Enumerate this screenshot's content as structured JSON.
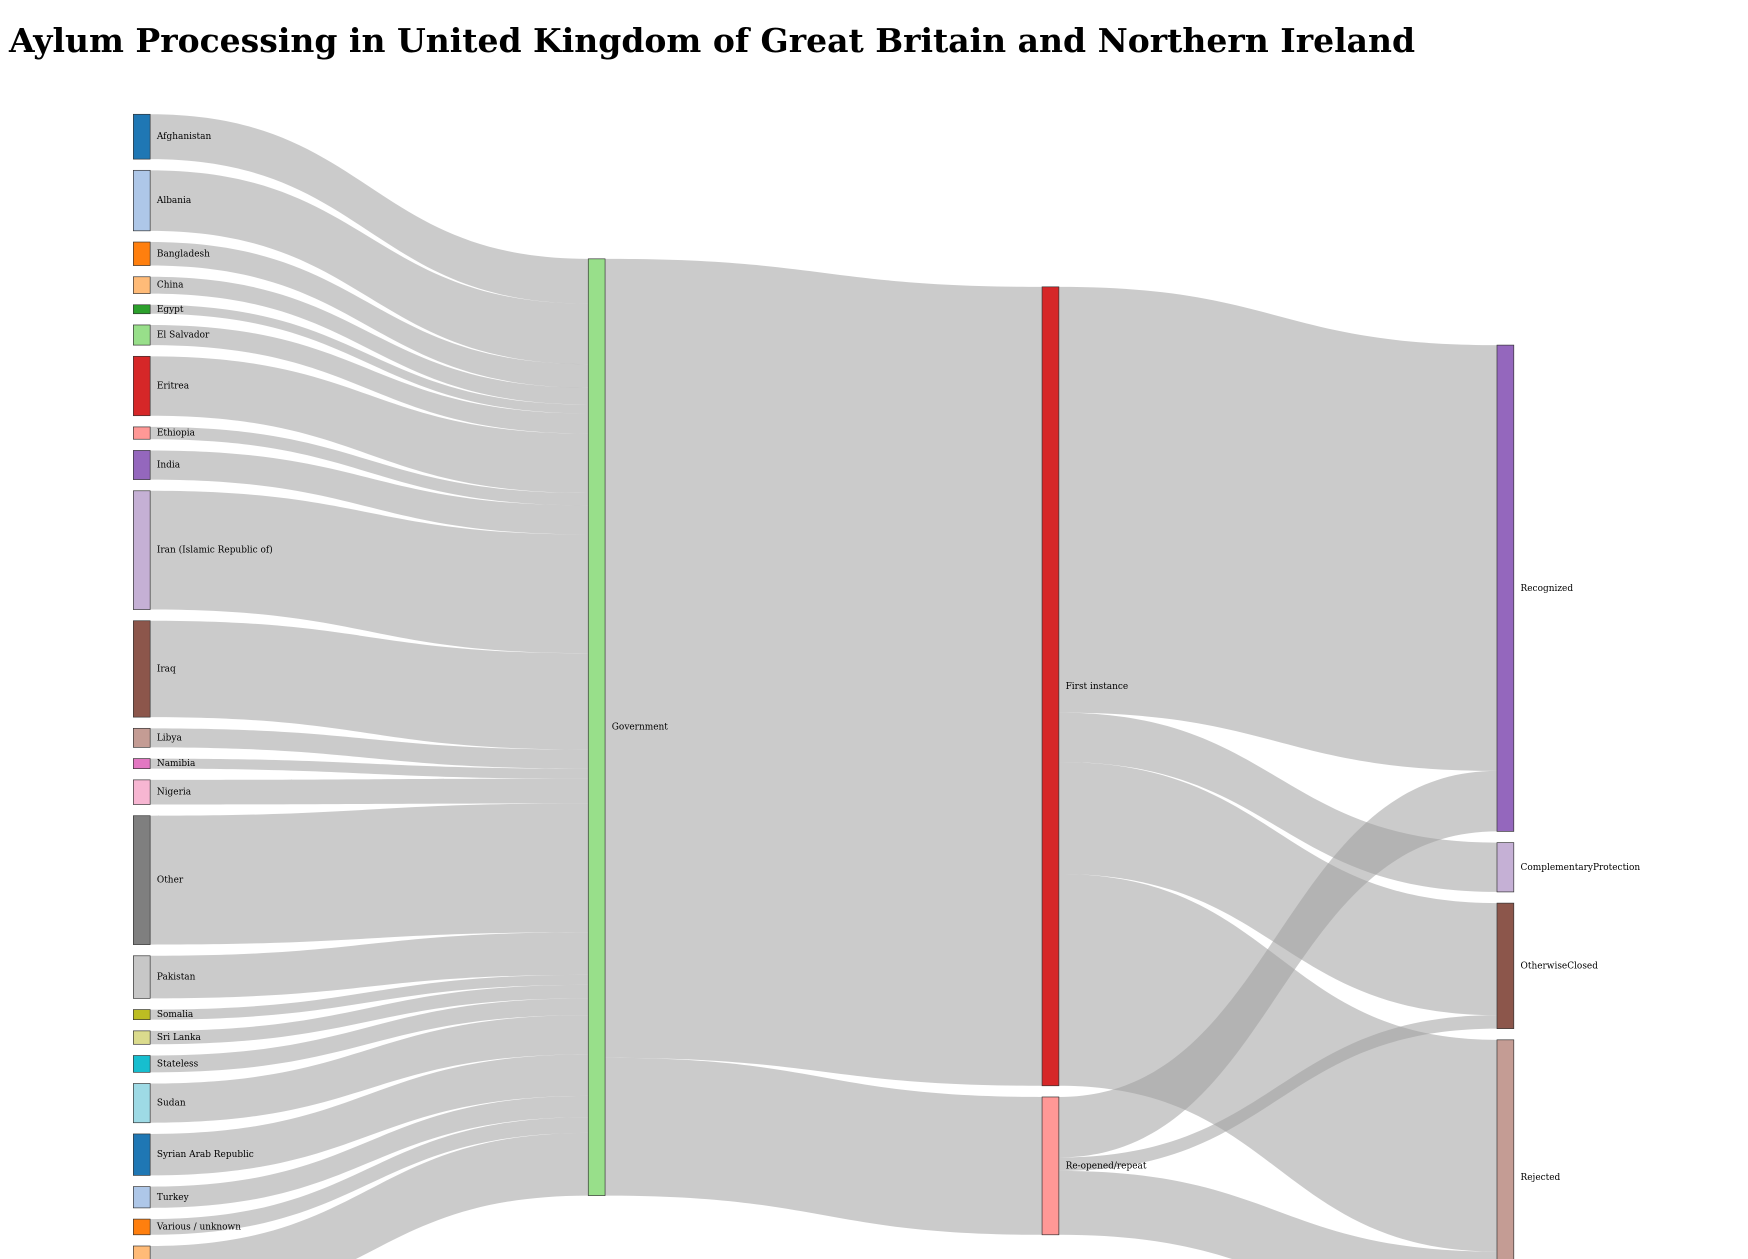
{
  "chart_data": {
    "type": "sankey",
    "title": "Aylum Processing in United Kingdom of Great Britain and Northern Ireland",
    "nodes": [
      {
        "name": "Afghanistan",
        "color": "#1f77b4"
      },
      {
        "name": "Albania",
        "color": "#aec7e8"
      },
      {
        "name": "Bangladesh",
        "color": "#ff7f0e"
      },
      {
        "name": "China",
        "color": "#ffbb78"
      },
      {
        "name": "Egypt",
        "color": "#2ca02c"
      },
      {
        "name": "El Salvador",
        "color": "#98df8a"
      },
      {
        "name": "Eritrea",
        "color": "#d62728"
      },
      {
        "name": "Ethiopia",
        "color": "#ff9896"
      },
      {
        "name": "India",
        "color": "#9467bd"
      },
      {
        "name": "Iran (Islamic Republic of)",
        "color": "#c5b0d5"
      },
      {
        "name": "Iraq",
        "color": "#8c564b"
      },
      {
        "name": "Libya",
        "color": "#c49c94"
      },
      {
        "name": "Namibia",
        "color": "#e377c2"
      },
      {
        "name": "Nigeria",
        "color": "#f7b6d2"
      },
      {
        "name": "Other",
        "color": "#7f7f7f"
      },
      {
        "name": "Pakistan",
        "color": "#c7c7c7"
      },
      {
        "name": "Somalia",
        "color": "#bcbd22"
      },
      {
        "name": "Sri Lanka",
        "color": "#dbdb8d"
      },
      {
        "name": "Stateless",
        "color": "#17becf"
      },
      {
        "name": "Sudan",
        "color": "#9edae5"
      },
      {
        "name": "Syrian Arab Republic",
        "color": "#1f77b4"
      },
      {
        "name": "Turkey",
        "color": "#aec7e8"
      },
      {
        "name": "Various / unknown",
        "color": "#ff7f0e"
      },
      {
        "name": null,
        "color": "#ffbb78"
      },
      {
        "name": "Government",
        "color": "#98df8a"
      },
      {
        "name": "First instance",
        "color": "#d62728"
      },
      {
        "name": "Re-opened/repeat",
        "color": "#ff9896"
      },
      {
        "name": "Recognized",
        "color": "#9467bd"
      },
      {
        "name": "ComplementaryProtection",
        "color": "#c5b0d5"
      },
      {
        "name": "OtherwiseClosed",
        "color": "#8c564b"
      },
      {
        "name": "Rejected",
        "color": "#c49c94"
      }
    ],
    "links": [
      {
        "source": 0,
        "target": 24,
        "value": 40
      },
      {
        "source": 1,
        "target": 24,
        "value": 54
      },
      {
        "source": 2,
        "target": 24,
        "value": 21
      },
      {
        "source": 3,
        "target": 24,
        "value": 15
      },
      {
        "source": 4,
        "target": 24,
        "value": 8
      },
      {
        "source": 5,
        "target": 24,
        "value": 18
      },
      {
        "source": 6,
        "target": 24,
        "value": 53
      },
      {
        "source": 7,
        "target": 24,
        "value": 11
      },
      {
        "source": 8,
        "target": 24,
        "value": 26
      },
      {
        "source": 9,
        "target": 24,
        "value": 106
      },
      {
        "source": 10,
        "target": 24,
        "value": 86
      },
      {
        "source": 11,
        "target": 24,
        "value": 17
      },
      {
        "source": 12,
        "target": 24,
        "value": 9
      },
      {
        "source": 13,
        "target": 24,
        "value": 22
      },
      {
        "source": 14,
        "target": 24,
        "value": 115
      },
      {
        "source": 15,
        "target": 24,
        "value": 38
      },
      {
        "source": 16,
        "target": 24,
        "value": 9
      },
      {
        "source": 17,
        "target": 24,
        "value": 12
      },
      {
        "source": 18,
        "target": 24,
        "value": 15
      },
      {
        "source": 19,
        "target": 24,
        "value": 35
      },
      {
        "source": 20,
        "target": 24,
        "value": 37
      },
      {
        "source": 21,
        "target": 24,
        "value": 19
      },
      {
        "source": 22,
        "target": 24,
        "value": 14
      },
      {
        "source": 23,
        "target": 24,
        "value": 56
      },
      {
        "source": 24,
        "target": 25,
        "value": 713
      },
      {
        "source": 24,
        "target": 26,
        "value": 123
      },
      {
        "source": 25,
        "target": 27,
        "value": 380
      },
      {
        "source": 25,
        "target": 28,
        "value": 44
      },
      {
        "source": 25,
        "target": 29,
        "value": 100
      },
      {
        "source": 25,
        "target": 30,
        "value": 189
      },
      {
        "source": 26,
        "target": 27,
        "value": 54
      },
      {
        "source": 26,
        "target": 29,
        "value": 12
      },
      {
        "source": 26,
        "target": 30,
        "value": 57
      }
    ]
  }
}
